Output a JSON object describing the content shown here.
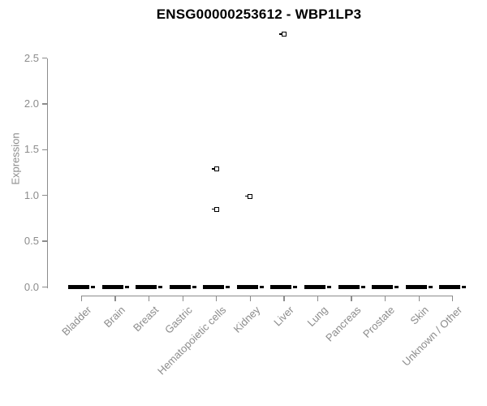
{
  "chart_data": {
    "type": "boxplot",
    "title": "ENSG00000253612 - WBP1LP3",
    "xlabel": "",
    "ylabel": "Expression",
    "ylim": [
      0,
      2.8
    ],
    "yticks": [
      "0.0",
      "0.5",
      "1.0",
      "1.5",
      "2.0",
      "2.5"
    ],
    "grid": false,
    "legend": false,
    "categories": [
      "Bladder",
      "Brain",
      "Breast",
      "Gastric",
      "Hematopoietic cells",
      "Kidney",
      "Liver",
      "Lung",
      "Pancreas",
      "Prostate",
      "Skin",
      "Unknown / Other"
    ],
    "series": [
      {
        "category": "Bladder",
        "q1": 0,
        "median": 0,
        "q3": 0,
        "outliers": []
      },
      {
        "category": "Brain",
        "q1": 0,
        "median": 0,
        "q3": 0,
        "outliers": []
      },
      {
        "category": "Breast",
        "q1": 0,
        "median": 0,
        "q3": 0,
        "outliers": []
      },
      {
        "category": "Gastric",
        "q1": 0,
        "median": 0,
        "q3": 0,
        "outliers": []
      },
      {
        "category": "Hematopoietic cells",
        "q1": 0,
        "median": 0,
        "q3": 0,
        "outliers": [
          0.85,
          1.29
        ]
      },
      {
        "category": "Kidney",
        "q1": 0,
        "median": 0,
        "q3": 0,
        "outliers": [
          0.99
        ]
      },
      {
        "category": "Liver",
        "q1": 0,
        "median": 0,
        "q3": 0,
        "outliers": [
          2.76
        ]
      },
      {
        "category": "Lung",
        "q1": 0,
        "median": 0,
        "q3": 0,
        "outliers": []
      },
      {
        "category": "Pancreas",
        "q1": 0,
        "median": 0,
        "q3": 0,
        "outliers": []
      },
      {
        "category": "Prostate",
        "q1": 0,
        "median": 0,
        "q3": 0,
        "outliers": []
      },
      {
        "category": "Skin",
        "q1": 0,
        "median": 0,
        "q3": 0,
        "outliers": []
      },
      {
        "category": "Unknown / Other",
        "q1": 0,
        "median": 0,
        "q3": 0,
        "outliers": []
      }
    ],
    "colors": {
      "box": "#000000",
      "outlier": "#000000",
      "axis": "#8c8c8c",
      "tick_label": "#8c8c8c",
      "title": "#000000",
      "background": "#ffffff"
    }
  }
}
